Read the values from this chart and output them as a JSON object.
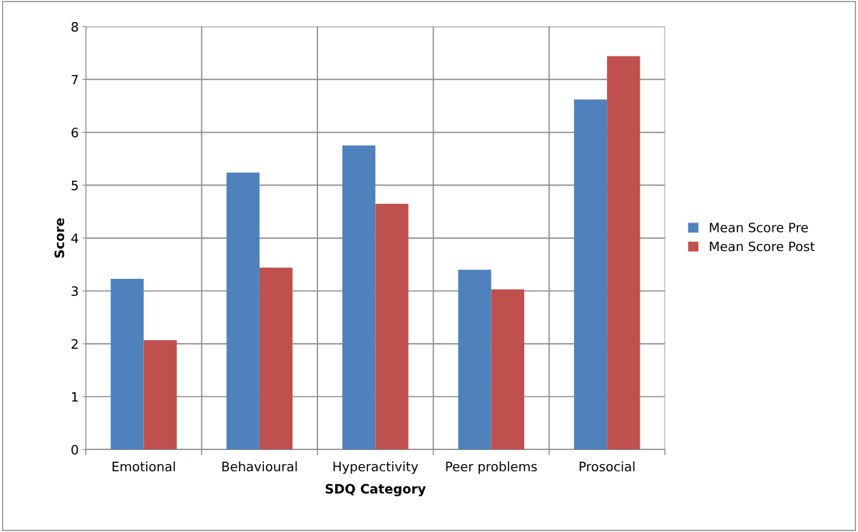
{
  "chart_data": {
    "type": "bar",
    "xlabel": "SDQ Category",
    "ylabel": "Score",
    "categories": [
      "Emotional",
      "Behavioural",
      "Hyperactivity",
      "Peer problems",
      "Prosocial"
    ],
    "series": [
      {
        "name": "Mean Score Pre",
        "color": "#4f81bd",
        "values": [
          3.23,
          5.24,
          5.75,
          3.4,
          6.62
        ]
      },
      {
        "name": "Mean Score Post",
        "color": "#c0504d",
        "values": [
          2.07,
          3.44,
          4.65,
          3.03,
          7.44
        ]
      }
    ],
    "ylim": [
      0,
      8
    ],
    "yticks": [
      0,
      1,
      2,
      3,
      4,
      5,
      6,
      7,
      8
    ],
    "grid": true,
    "legend": "right"
  }
}
